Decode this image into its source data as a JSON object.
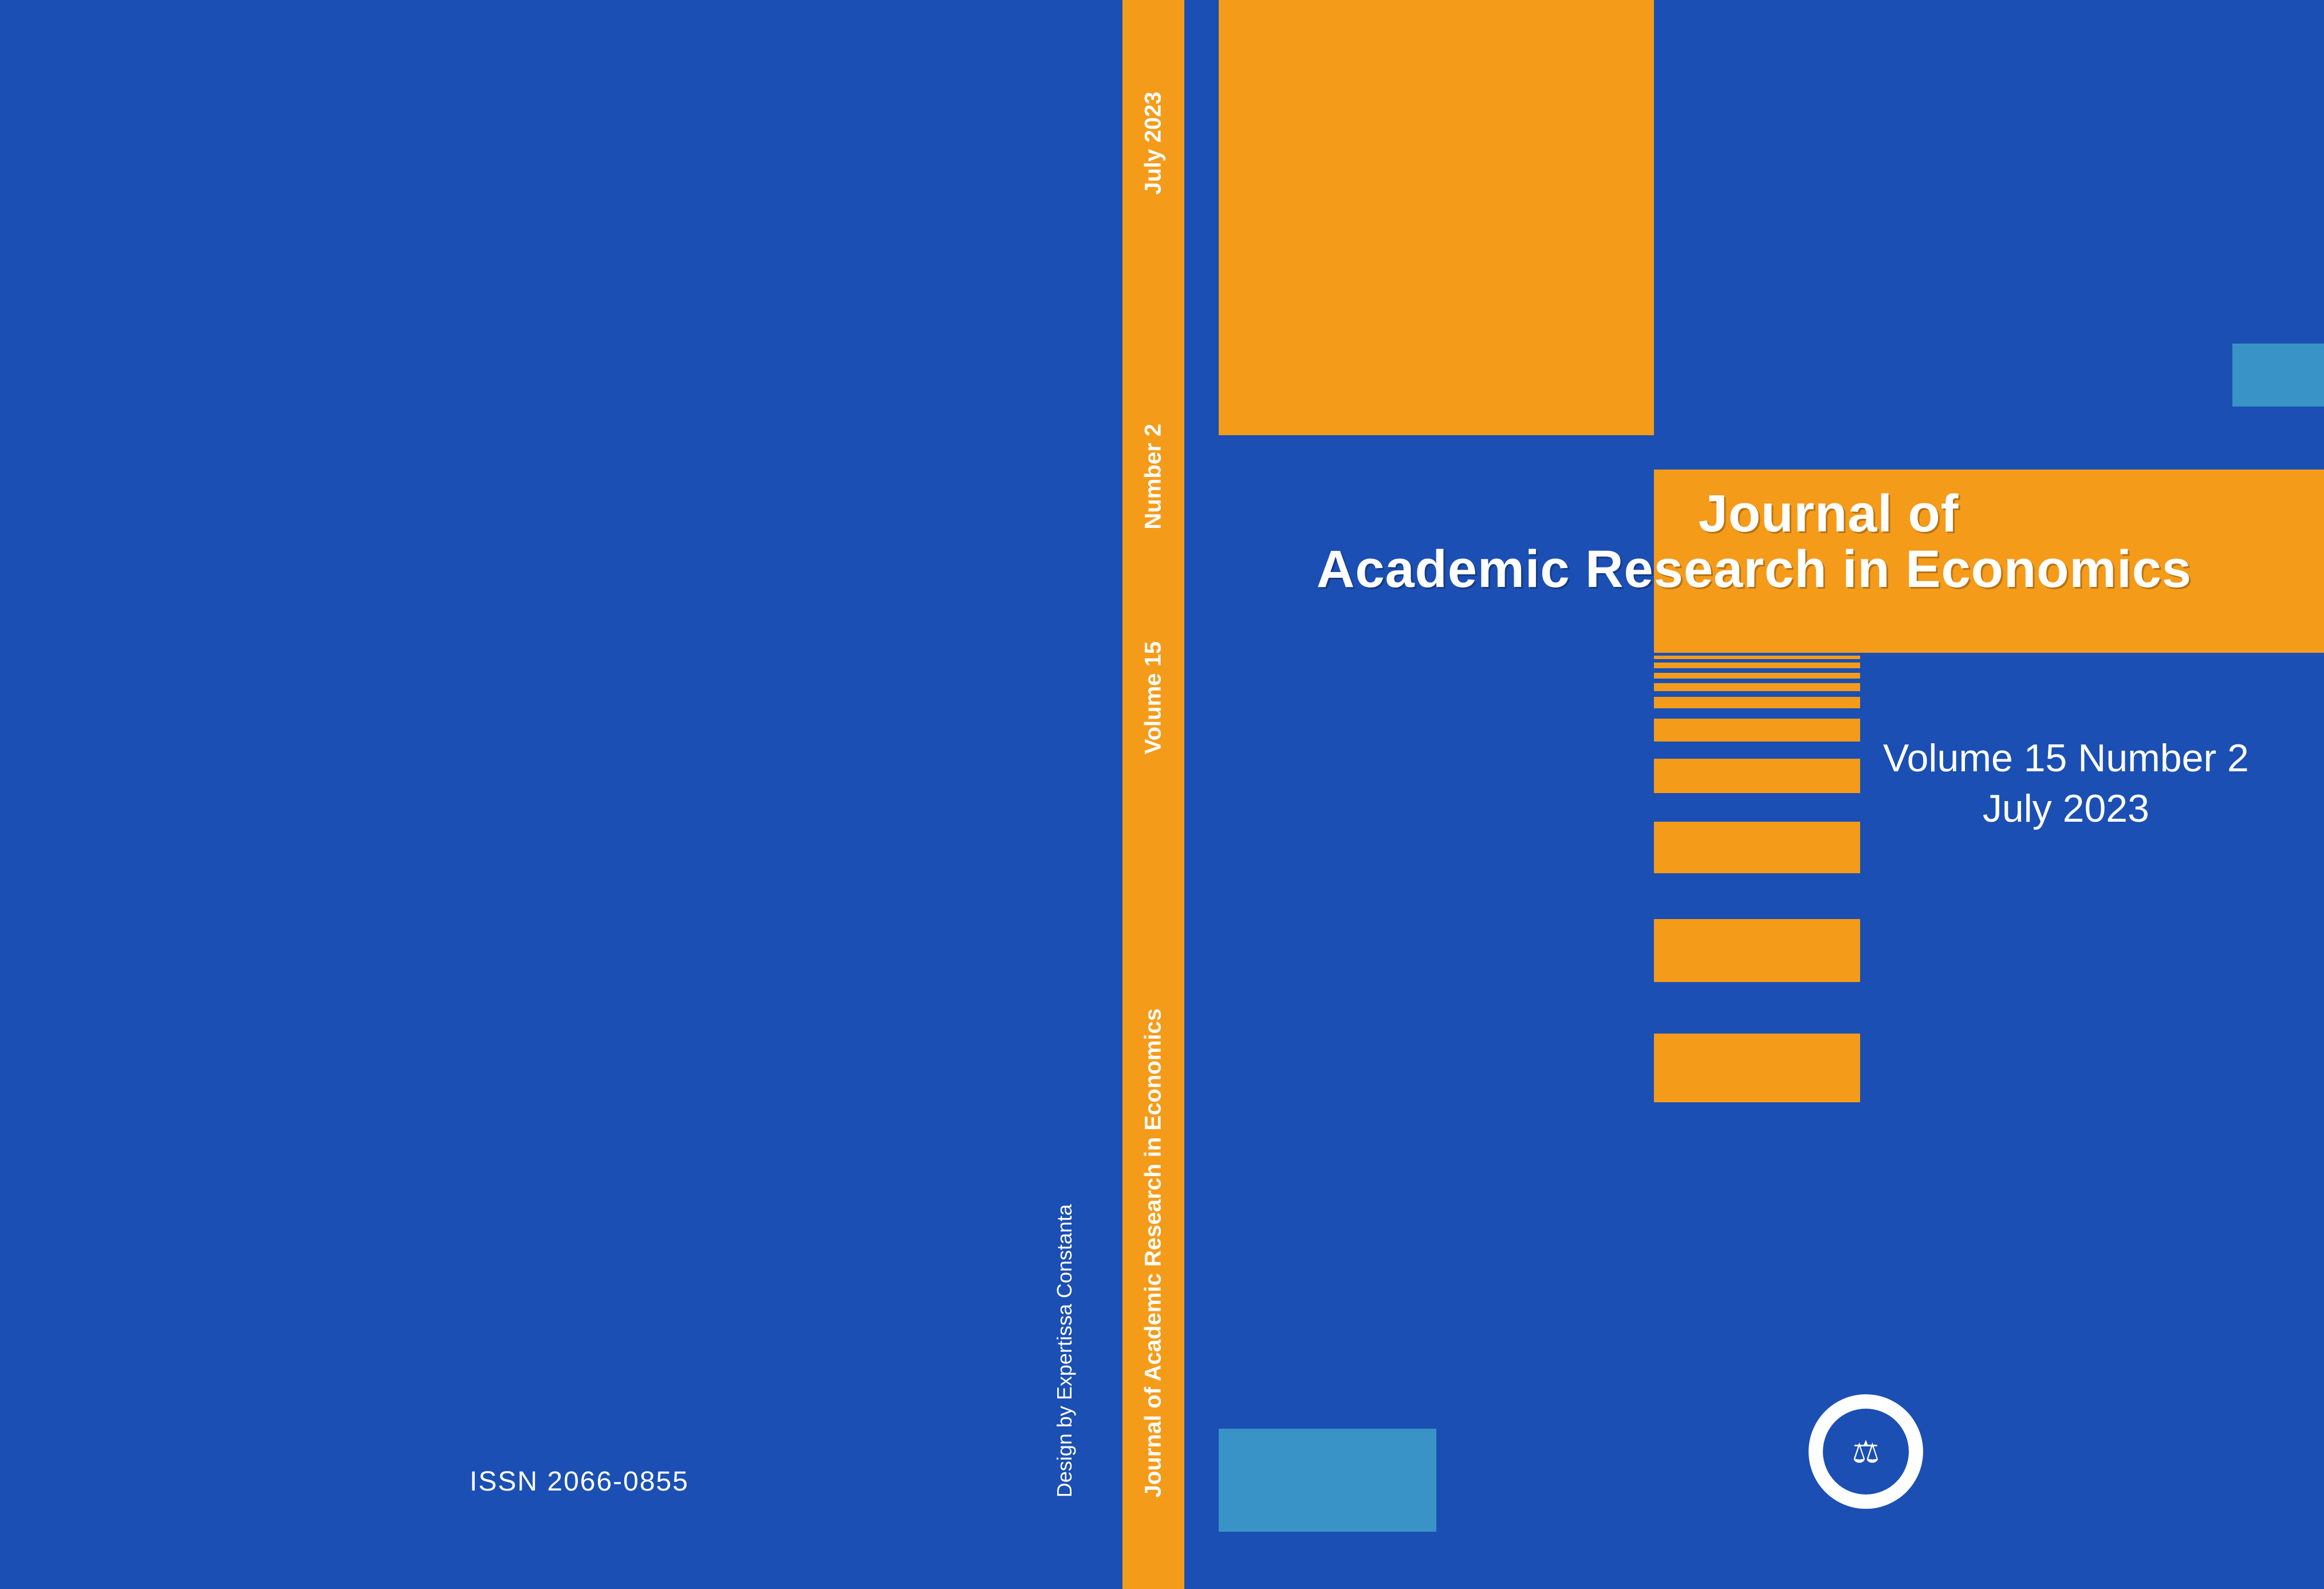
{
  "colors": {
    "blue_main": "#1b4fb3",
    "orange": "#f59b1a",
    "accent_cyan": "#3a93c6",
    "white": "#ffffff",
    "title_shadow": "rgba(0,0,0,0.25)"
  },
  "back": {
    "issn": "ISSN 2066-0855",
    "designer": "Design by Expertissa Constanta"
  },
  "spine": {
    "title": "Journal of Academic Research in Economics",
    "volume": "Volume  15",
    "number": "Number 2",
    "date": "July  2023"
  },
  "front": {
    "title_line1": "Journal of",
    "title_line2": "Academic Research in Economics",
    "issue_line1": "Volume 15  Number 2",
    "issue_line2": "July 2023"
  },
  "deco_bars": [
    {
      "height": 6,
      "gap": 6
    },
    {
      "height": 10,
      "gap": 8
    },
    {
      "height": 10,
      "gap": 8
    },
    {
      "height": 14,
      "gap": 10
    },
    {
      "height": 20,
      "gap": 18
    },
    {
      "height": 40,
      "gap": 30
    },
    {
      "height": 60,
      "gap": 50
    },
    {
      "height": 90,
      "gap": 80
    },
    {
      "height": 110,
      "gap": 90
    },
    {
      "height": 120,
      "gap": 0
    }
  ],
  "logo": {
    "ring_bg": "#ffffff",
    "inner_bg": "#1b4fb3",
    "glyph": "⚖",
    "glyph_color": "#ffffff"
  }
}
